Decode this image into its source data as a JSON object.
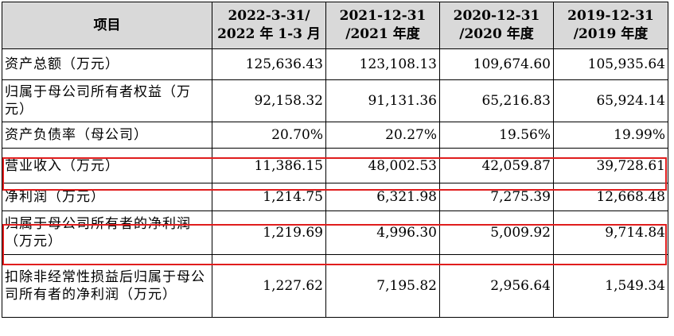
{
  "table": {
    "headers": [
      {
        "line1": "项目",
        "line2": ""
      },
      {
        "line1": "2022-3-31/",
        "line2": "2022 年 1-3 月"
      },
      {
        "line1": "2021-12-31",
        "line2": "/2021 年度"
      },
      {
        "line1": "2020-12-31",
        "line2": "/2020 年度"
      },
      {
        "line1": "2019-12-31",
        "line2": "/2019 年度"
      }
    ],
    "rows": [
      {
        "label": "资产总额（万元）",
        "values": [
          "125,636.43",
          "123,108.13",
          "109,674.60",
          "105,935.64"
        ],
        "highlighted": false
      },
      {
        "label": "归属于母公司所有者权益（万元）",
        "values": [
          "92,158.32",
          "91,131.36",
          "65,216.83",
          "65,924.14"
        ],
        "highlighted": false
      },
      {
        "label": "资产负债率（母公司）",
        "values": [
          "20.70%",
          "20.27%",
          "19.56%",
          "19.99%"
        ],
        "highlighted": false
      },
      {
        "label": "营业收入（万元）",
        "values": [
          "11,386.15",
          "48,002.53",
          "42,059.87",
          "39,728.61"
        ],
        "highlighted": true
      },
      {
        "label": "净利润（万元）",
        "values": [
          "1,214.75",
          "6,321.98",
          "7,275.39",
          "12,668.48"
        ],
        "highlighted": false
      },
      {
        "label": "归属于母公司所有者的净利润（万元）",
        "values": [
          "1,219.69",
          "4,996.30",
          "5,009.92",
          "9,714.84"
        ],
        "highlighted": true
      },
      {
        "label": "扣除非经常性损益后归属于母公司所有者的净利润（万元）",
        "values": [
          "1,227.62",
          "7,195.82",
          "2,956.64",
          "1,549.34"
        ],
        "highlighted": false
      }
    ]
  },
  "colors": {
    "header_bg": "#d9d9d9",
    "highlight_border": "#e01d1d",
    "grid": "#000000"
  }
}
